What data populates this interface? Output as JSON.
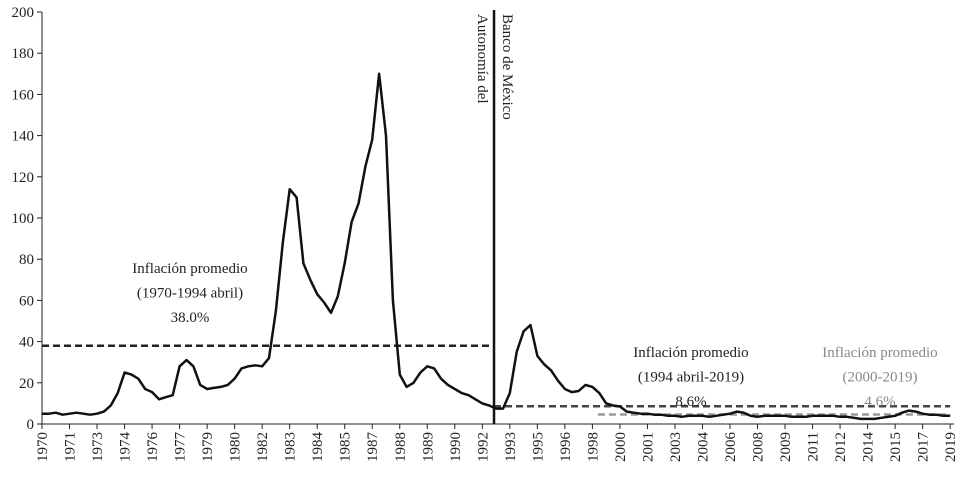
{
  "chart_data": {
    "type": "line",
    "categories": [
      "1970",
      null,
      null,
      null,
      "1971",
      null,
      null,
      null,
      "1973",
      null,
      null,
      null,
      "1974",
      null,
      null,
      null,
      "1976",
      null,
      null,
      null,
      "1977",
      null,
      null,
      null,
      "1979",
      null,
      null,
      null,
      "1980",
      null,
      null,
      null,
      "1982",
      null,
      null,
      null,
      "1983",
      null,
      null,
      null,
      "1984",
      null,
      null,
      null,
      "1985",
      null,
      null,
      null,
      "1987",
      null,
      null,
      null,
      "1988",
      null,
      null,
      null,
      "1989",
      null,
      null,
      null,
      "1990",
      null,
      null,
      null,
      "1992",
      null,
      null,
      null,
      "1993",
      null,
      null,
      null,
      "1995",
      null,
      null,
      null,
      "1996",
      null,
      null,
      null,
      "1998",
      null,
      null,
      null,
      "2000",
      null,
      null,
      null,
      "2001",
      null,
      null,
      null,
      "2003",
      null,
      null,
      null,
      "2004",
      null,
      null,
      null,
      "2006",
      null,
      null,
      null,
      "2008",
      null,
      null,
      null,
      "2009",
      null,
      null,
      null,
      "2011",
      null,
      null,
      null,
      "2012",
      null,
      null,
      null,
      "2014",
      null,
      null,
      null,
      "2015",
      null,
      null,
      null,
      "2017",
      null,
      null,
      null,
      "2019"
    ],
    "values": [
      5,
      5,
      5.5,
      4.5,
      5,
      5.5,
      5,
      4.5,
      5,
      6,
      9,
      15,
      25,
      24,
      22,
      17,
      15.5,
      12,
      13,
      14,
      28,
      31,
      28,
      19,
      17,
      17.5,
      18,
      19,
      22,
      27,
      28,
      28.5,
      28,
      32,
      55,
      88,
      114,
      110,
      78,
      70,
      63,
      59,
      54,
      62,
      78,
      98,
      107,
      125,
      138,
      170,
      140,
      60,
      24,
      18,
      20,
      25,
      28,
      27,
      22,
      19,
      17,
      15,
      14,
      12,
      10,
      9,
      7.5,
      7.5,
      15,
      35,
      45,
      48,
      33,
      29,
      26,
      21,
      17,
      15.5,
      16,
      19,
      18,
      15,
      10,
      9,
      8.5,
      6,
      5.5,
      5,
      5,
      4.5,
      4.5,
      4,
      4,
      3.5,
      4,
      4,
      4,
      3.5,
      4,
      4.5,
      5,
      6,
      5.5,
      4,
      3.5,
      4,
      4,
      4,
      4,
      3.5,
      3.5,
      3.5,
      4,
      4,
      4,
      4,
      3.5,
      3.5,
      3,
      2.5,
      2.5,
      2.5,
      3,
      3.5,
      4,
      5.5,
      6.5,
      6,
      5,
      4.5,
      4.5,
      4,
      4
    ],
    "color": "#111111",
    "ylim": [
      0,
      200
    ],
    "yticks": [
      0,
      20,
      40,
      60,
      80,
      100,
      120,
      140,
      160,
      180,
      200
    ],
    "vline": {
      "at": 65.7,
      "label": [
        "Autonomía del",
        "Banco de México"
      ],
      "color": "#111111"
    },
    "reference_lines": [
      {
        "lines": [
          "Inflación promedio",
          "(1970-1994 abril)",
          "38.0%"
        ],
        "value": 38.0,
        "from": 0,
        "to": 65.7,
        "color": "#222222"
      },
      {
        "lines": [
          "Inflación promedio",
          "(1994 abril-2019)",
          "8.6%"
        ],
        "value": 8.6,
        "from": 65.7,
        "to": 132,
        "color": "#444444"
      },
      {
        "lines": [
          "Inflación promedio",
          "(2000-2019)",
          "4.6%"
        ],
        "value": 4.6,
        "from": 80.8,
        "to": 132,
        "color": "#999999"
      }
    ]
  }
}
